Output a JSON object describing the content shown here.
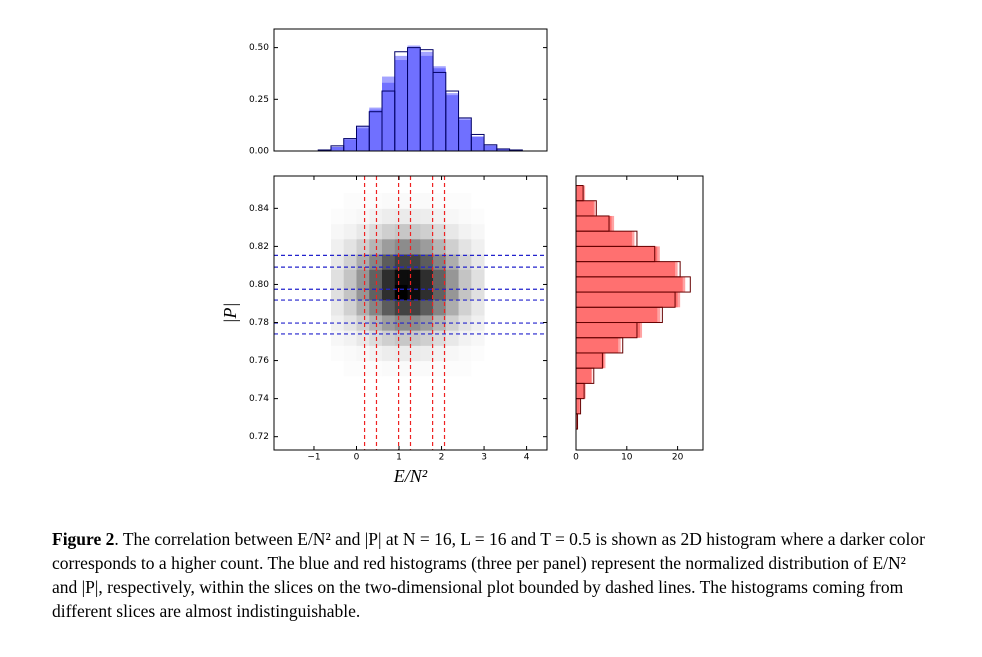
{
  "chart_data": [
    {
      "type": "histogram",
      "orientation": "vertical",
      "bins": [
        -0.9,
        -0.6,
        -0.3,
        0,
        0.3,
        0.6,
        0.9,
        1.2,
        1.5,
        1.8,
        2.1,
        2.4,
        2.7,
        3.0,
        3.3,
        3.6,
        3.9
      ],
      "series": [
        {
          "color": "#3333ff",
          "values": [
            0.005,
            0.02,
            0.06,
            0.11,
            0.2,
            0.33,
            0.46,
            0.5,
            0.48,
            0.4,
            0.28,
            0.16,
            0.07,
            0.03,
            0.01,
            0.005
          ]
        },
        {
          "color": "#3333ff",
          "values": [
            0.005,
            0.02,
            0.055,
            0.12,
            0.21,
            0.36,
            0.44,
            0.51,
            0.46,
            0.41,
            0.27,
            0.15,
            0.07,
            0.025,
            0.01,
            0.005
          ]
        },
        {
          "color": "#000066",
          "values": [
            0.005,
            0.025,
            0.06,
            0.12,
            0.19,
            0.29,
            0.48,
            0.5,
            0.49,
            0.38,
            0.29,
            0.16,
            0.08,
            0.03,
            0.01,
            0.005
          ]
        }
      ],
      "xlim": [
        -1.94,
        4.48
      ],
      "ylim": [
        0,
        0.59
      ],
      "yticks": [
        {
          "value": 0,
          "label": "0.00"
        },
        {
          "value": 0.25,
          "label": "0.25"
        },
        {
          "value": 0.5,
          "label": "0.50"
        }
      ]
    },
    {
      "type": "heatmap",
      "x_edges": [
        -0.6,
        -0.3,
        0,
        0.3,
        0.6,
        0.9,
        1.2,
        1.5,
        1.8,
        2.1,
        2.4,
        2.7,
        3.0
      ],
      "y_edges": [
        0.752,
        0.76,
        0.768,
        0.776,
        0.784,
        0.792,
        0.8,
        0.808,
        0.816,
        0.824,
        0.832,
        0.84,
        0.848
      ],
      "values": [
        [
          0,
          1,
          1,
          1,
          2,
          2,
          2,
          2,
          1,
          1,
          1,
          0
        ],
        [
          1,
          2,
          3,
          5,
          7,
          8,
          8,
          7,
          5,
          3,
          2,
          1
        ],
        [
          3,
          5,
          9,
          14,
          19,
          22,
          22,
          19,
          14,
          9,
          5,
          3
        ],
        [
          6,
          11,
          19,
          29,
          39,
          45,
          45,
          39,
          29,
          19,
          11,
          6
        ],
        [
          9,
          18,
          32,
          48,
          64,
          74,
          74,
          64,
          48,
          32,
          18,
          9
        ],
        [
          12,
          23,
          41,
          62,
          82,
          100,
          95,
          82,
          62,
          41,
          23,
          12
        ],
        [
          12,
          23,
          41,
          62,
          82,
          95,
          95,
          82,
          62,
          41,
          23,
          12
        ],
        [
          9,
          18,
          32,
          48,
          64,
          74,
          74,
          64,
          48,
          32,
          18,
          9
        ],
        [
          6,
          11,
          19,
          29,
          39,
          45,
          45,
          39,
          29,
          19,
          11,
          6
        ],
        [
          3,
          5,
          9,
          14,
          19,
          22,
          22,
          19,
          14,
          9,
          5,
          3
        ],
        [
          1,
          2,
          3,
          5,
          7,
          8,
          8,
          7,
          5,
          3,
          2,
          1
        ],
        [
          0,
          1,
          1,
          1,
          2,
          2,
          2,
          2,
          1,
          1,
          1,
          0
        ]
      ],
      "x_slices": [
        0.19,
        0.47,
        0.99,
        1.27,
        1.79,
        2.07
      ],
      "x_slice_color": "#ee2222",
      "y_slices": [
        0.8153,
        0.8091,
        0.7975,
        0.7918,
        0.7797,
        0.774
      ],
      "y_slice_color": "#2222cc",
      "xlim": [
        -1.94,
        4.48
      ],
      "ylim": [
        0.713,
        0.857
      ],
      "xticks": [
        {
          "value": -1,
          "label": "−1"
        },
        0,
        1,
        2,
        3,
        4
      ],
      "yticks": [
        0.72,
        0.74,
        0.76,
        0.78,
        {
          "value": 0.8,
          "label": "0.80"
        },
        0.82,
        0.84
      ],
      "xlabel": "E/N²",
      "ylabel": "|P|"
    },
    {
      "type": "histogram",
      "orientation": "horizontal",
      "bins": [
        0.724,
        0.732,
        0.74,
        0.748,
        0.756,
        0.764,
        0.772,
        0.78,
        0.788,
        0.796,
        0.804,
        0.812,
        0.82,
        0.828,
        0.836,
        0.844,
        0.852
      ],
      "series": [
        {
          "color": "#ff3333",
          "values": [
            0.3,
            0.8,
            1.7,
            3.2,
            5.5,
            8.8,
            12.6,
            16.6,
            20,
            21.5,
            20,
            16,
            11.5,
            7,
            3.8,
            1.5
          ]
        },
        {
          "color": "#ff3333",
          "values": [
            0.4,
            0.7,
            1.9,
            3,
            5.8,
            8.3,
            13,
            16,
            20.5,
            21,
            19.5,
            16.5,
            11,
            7.5,
            3.5,
            1.8
          ]
        },
        {
          "color": "#660000",
          "values": [
            0.3,
            0.9,
            1.6,
            3.5,
            5.2,
            9.2,
            12,
            17,
            19.5,
            22.5,
            20.5,
            15.5,
            12,
            6.5,
            4,
            1.4
          ]
        }
      ],
      "xlim": [
        0,
        25
      ],
      "ylim": [
        0.713,
        0.857
      ],
      "xticks": [
        0,
        10,
        20
      ]
    }
  ],
  "caption": {
    "label": "Figure 2",
    "text": ". The correlation between E/N² and |P| at N = 16, L = 16 and T = 0.5 is shown as 2D histogram where a darker color corresponds to a higher count. The blue and red histograms (three per panel) represent the normalized distribution of E/N² and |P|, respectively, within the slices on the two-dimensional plot bounded by dashed lines. The histograms coming from different slices are almost indistinguishable."
  }
}
